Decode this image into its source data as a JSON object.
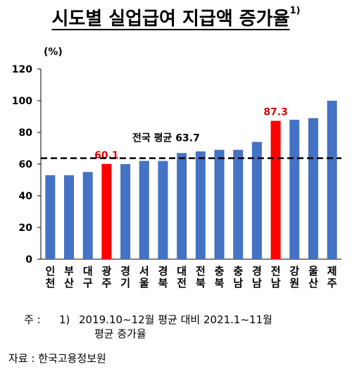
{
  "title": {
    "text": "시도별 실업급여 지급액 증가율",
    "sup": "1)"
  },
  "chart_data": {
    "type": "bar",
    "unit_label": "(%)",
    "categories": [
      [
        "인",
        "천"
      ],
      [
        "부",
        "산"
      ],
      [
        "대",
        "구"
      ],
      [
        "광",
        "주"
      ],
      [
        "경",
        "기"
      ],
      [
        "서",
        "울"
      ],
      [
        "경",
        "북"
      ],
      [
        "대",
        "전"
      ],
      [
        "전",
        "북"
      ],
      [
        "충",
        "북"
      ],
      [
        "충",
        "남"
      ],
      [
        "경",
        "남"
      ],
      [
        "전",
        "남"
      ],
      [
        "강",
        "원"
      ],
      [
        "울",
        "산"
      ],
      [
        "제",
        "주"
      ]
    ],
    "values": [
      53,
      53,
      55,
      60.1,
      60,
      62,
      62,
      67,
      68,
      69,
      69,
      74,
      87.3,
      88,
      89,
      100
    ],
    "highlight_indices": [
      3,
      12
    ],
    "data_labels": [
      {
        "index": 3,
        "text": "60.1"
      },
      {
        "index": 12,
        "text": "87.3"
      }
    ],
    "ylim": [
      0,
      120
    ],
    "yticks": [
      0,
      20,
      40,
      60,
      80,
      100,
      120
    ],
    "average": {
      "value": 63.7,
      "label": "전국 평균 63.7"
    },
    "colors": {
      "bar": "#4472c4",
      "highlight": "#ff0000",
      "label_highlight": "#e00000",
      "average_line": "#000000"
    }
  },
  "footnote": {
    "label": "주 :",
    "number": "1)",
    "text": "2019.10~12월  평균  대비  2021.1~11월",
    "text2": "평균  증가율"
  },
  "source": "자료 : 한국고용정보원"
}
